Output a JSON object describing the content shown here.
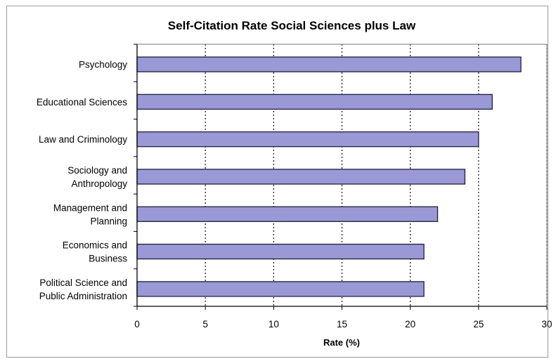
{
  "chart_data": {
    "type": "bar",
    "orientation": "horizontal",
    "title": "Self-Citation Rate Social Sciences plus Law",
    "xlabel": "Rate (%)",
    "ylabel": "",
    "xlim": [
      0,
      30
    ],
    "x_ticks": [
      "0",
      "5",
      "10",
      "15",
      "20",
      "25",
      "30"
    ],
    "grid": "vertical dotted",
    "legend": "none",
    "bar_color": "#9a99d6",
    "categories": [
      [
        "Psychology"
      ],
      [
        "Educational Sciences"
      ],
      [
        "Law and Criminology"
      ],
      [
        "Sociology and",
        "Anthropology"
      ],
      [
        "Management and",
        "Planning"
      ],
      [
        "Economics and",
        "Business"
      ],
      [
        "Political Science and",
        "Public Administration"
      ]
    ],
    "values": [
      28.1,
      26.0,
      25.0,
      24.0,
      22.0,
      21.0,
      21.0
    ]
  }
}
